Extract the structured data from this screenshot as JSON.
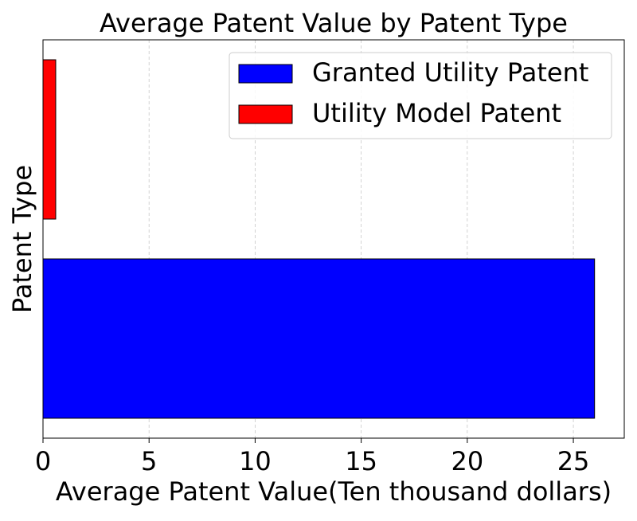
{
  "chart_data": {
    "type": "bar",
    "orientation": "horizontal",
    "title": "Average Patent Value by Patent Type",
    "xlabel": "Average Patent Value(Ten thousand dollars)",
    "ylabel": "Patent Type",
    "xlim": [
      0,
      27.4
    ],
    "xticks": [
      0,
      5,
      10,
      15,
      20,
      25
    ],
    "grid": "x-dashed",
    "legend_position": "top-right",
    "series": [
      {
        "name": "Granted Utility Patent",
        "color": "#0000ff",
        "value": 26.0
      },
      {
        "name": "Utility Model Patent",
        "color": "#ff0000",
        "value": 0.6
      }
    ]
  }
}
